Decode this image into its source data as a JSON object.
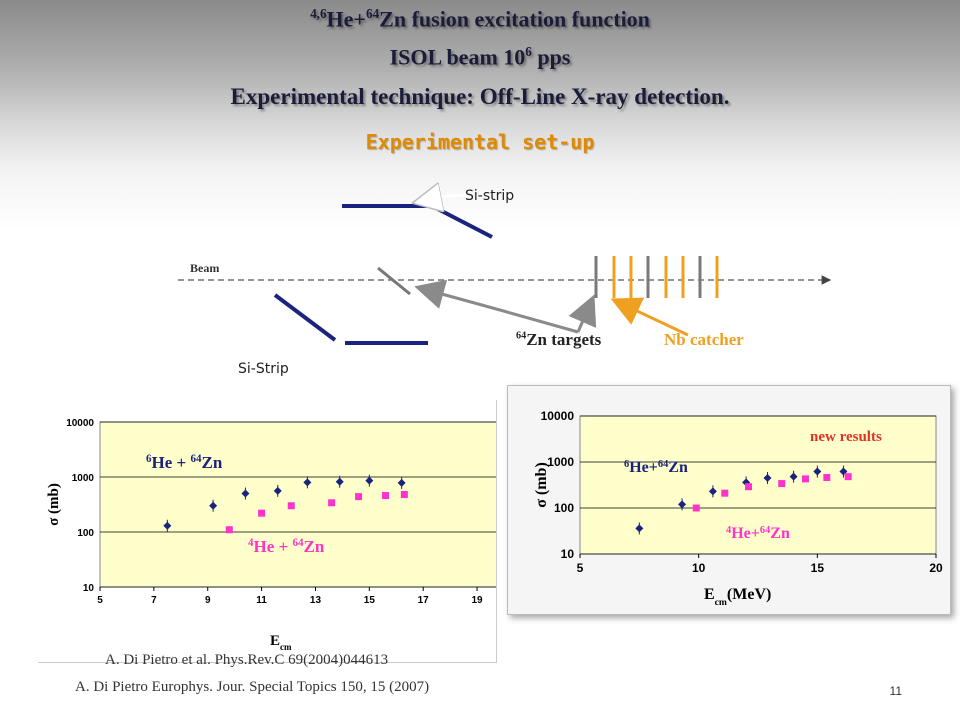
{
  "slide": {
    "title_sup": "4,6",
    "title_main": "He+",
    "title_sup2": "64",
    "title_end": "Zn fusion excitation function",
    "subtitle_a": "ISOL beam 10",
    "subtitle_sup": "6",
    "subtitle_b": " pps",
    "technique": "Experimental technique: Off-Line X-ray detection.",
    "setup": "Experimental set-up",
    "page_number": "11"
  },
  "setup_diagram": {
    "si_strip_top": "Si-strip",
    "si_strip_bottom": "Si-Strip",
    "beam": "Beam",
    "targets_sup": "64",
    "targets": "Zn targets",
    "catcher": "Nb catcher",
    "colors": {
      "strip": "#1a237e",
      "target": "#7a7a7a",
      "catcher": "#f0a020",
      "arrow": "#8a8a8a"
    }
  },
  "citations": [
    "A. Di Pietro et al. Phys.Rev.C 69(2004)044613",
    "A. Di Pietro Europhys. Jour. Special Topics 150, 15 (2007)"
  ],
  "chart_data": [
    {
      "type": "scatter",
      "xlabel": "E",
      "xlabel_sub": "cm",
      "ylabel": "σ (mb)",
      "ylog": true,
      "ylim": [
        10,
        10000
      ],
      "xlim": [
        5,
        20
      ],
      "xticks": [
        "5",
        "7",
        "9",
        "11",
        "13",
        "15",
        "17",
        "19"
      ],
      "yticks": [
        "10000",
        "1000",
        "100",
        "10"
      ],
      "series": [
        {
          "name": "6He + 64Zn",
          "label_sup1": "6",
          "label_mid": "He + ",
          "label_sup2": "64",
          "label_end": "Zn",
          "color": "#1a237e",
          "marker": "diamond",
          "x": [
            7.5,
            9.2,
            10.4,
            11.6,
            12.7,
            13.9,
            15.0,
            16.2
          ],
          "y": [
            130,
            300,
            500,
            560,
            800,
            820,
            860,
            780
          ]
        },
        {
          "name": "4He + 64Zn",
          "label_sup1": "4",
          "label_mid": "He + ",
          "label_sup2": "64",
          "label_end": "Zn",
          "color": "#ff33cc",
          "marker": "square",
          "x": [
            9.8,
            11.0,
            12.1,
            13.6,
            14.6,
            15.6,
            16.3
          ],
          "y": [
            110,
            220,
            300,
            340,
            440,
            460,
            480
          ]
        }
      ]
    },
    {
      "type": "scatter",
      "xlabel": "E",
      "xlabel_sub": "cm",
      "xlabel_unit": "(MeV)",
      "ylabel": "σ (mb)",
      "ylog": true,
      "ylim": [
        10,
        10000
      ],
      "xlim": [
        5,
        20
      ],
      "xticks": [
        "5",
        "10",
        "15",
        "20"
      ],
      "yticks": [
        "10000",
        "1000",
        "100",
        "10"
      ],
      "annotation": "new results",
      "series": [
        {
          "name": "6He+64Zn",
          "label_sup1": "6",
          "label_mid": "He+",
          "label_sup2": "64",
          "label_end": "Zn",
          "color": "#1a237e",
          "marker": "diamond",
          "x": [
            7.5,
            9.3,
            10.6,
            12.0,
            12.9,
            14.0,
            15.0,
            16.1
          ],
          "y": [
            36,
            120,
            230,
            360,
            450,
            480,
            620,
            620
          ]
        },
        {
          "name": "4He+64Zn",
          "label_sup1": "4",
          "label_mid": "He+",
          "label_sup2": "64",
          "label_end": "Zn",
          "color": "#ff33cc",
          "marker": "square",
          "x": [
            9.9,
            11.1,
            12.1,
            13.5,
            14.5,
            15.4,
            16.3
          ],
          "y": [
            100,
            210,
            290,
            340,
            430,
            460,
            480
          ]
        }
      ]
    }
  ]
}
